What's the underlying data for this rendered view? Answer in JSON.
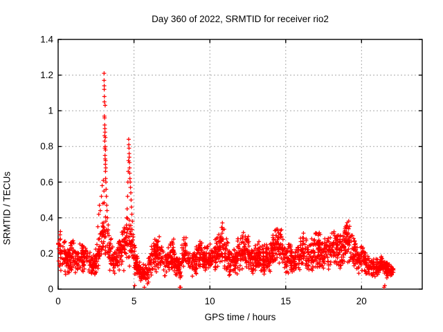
{
  "window": {
    "background": "#ffffff"
  },
  "chart_data": {
    "type": "scatter",
    "title": "Day 360 of 2022, SRMTID for receiver rio2",
    "xlabel": "GPS time / hours",
    "ylabel": "SRMTID / TECUs",
    "xlim": [
      0,
      24
    ],
    "ylim": [
      0,
      1.4
    ],
    "xticks": [
      0,
      5,
      10,
      15,
      20
    ],
    "xtick_labels": [
      "0",
      "5",
      "10",
      "15",
      "20"
    ],
    "yticks": [
      0,
      0.2,
      0.4,
      0.6,
      0.8,
      1.0,
      1.2,
      1.4
    ],
    "ytick_labels": [
      "0",
      "0.2",
      "0.4",
      "0.6",
      "0.8",
      "1",
      "1.2",
      "1.4"
    ],
    "grid": true,
    "legend": "none",
    "marker": "plus",
    "marker_color": "#ff0000",
    "grid_color": "#a8a8a8",
    "axis_color": "#000000",
    "data_time_range_hours": [
      0,
      22.1
    ],
    "max_value": 1.21,
    "max_value_time": 3.03,
    "band_envelope": {
      "description": "Dense noisy band of SRMTID values; keypoints are [t_hours, band_low, band_high] estimated from the plot; values interpolated linearly between keypoints.",
      "keypoints": [
        [
          0.0,
          0.1,
          0.4
        ],
        [
          0.2,
          0.09,
          0.35
        ],
        [
          0.45,
          0.08,
          0.29
        ],
        [
          0.7,
          0.08,
          0.25
        ],
        [
          0.95,
          0.09,
          0.32
        ],
        [
          1.1,
          0.09,
          0.3
        ],
        [
          1.3,
          0.07,
          0.23
        ],
        [
          1.55,
          0.09,
          0.28
        ],
        [
          1.8,
          0.08,
          0.24
        ],
        [
          2.0,
          0.07,
          0.25
        ],
        [
          2.25,
          0.06,
          0.2
        ],
        [
          2.5,
          0.07,
          0.24
        ],
        [
          2.75,
          0.11,
          0.36
        ],
        [
          3.0,
          0.15,
          0.5
        ],
        [
          3.15,
          0.13,
          0.48
        ],
        [
          3.35,
          0.09,
          0.33
        ],
        [
          3.6,
          0.08,
          0.26
        ],
        [
          3.85,
          0.08,
          0.25
        ],
        [
          4.1,
          0.09,
          0.32
        ],
        [
          4.35,
          0.1,
          0.4
        ],
        [
          4.6,
          0.12,
          0.46
        ],
        [
          4.85,
          0.1,
          0.38
        ],
        [
          5.1,
          0.06,
          0.24
        ],
        [
          5.35,
          0.04,
          0.17
        ],
        [
          5.6,
          0.03,
          0.14
        ],
        [
          5.85,
          0.04,
          0.16
        ],
        [
          6.1,
          0.06,
          0.23
        ],
        [
          6.35,
          0.08,
          0.3
        ],
        [
          6.6,
          0.09,
          0.33
        ],
        [
          6.85,
          0.08,
          0.27
        ],
        [
          7.1,
          0.06,
          0.23
        ],
        [
          7.35,
          0.07,
          0.26
        ],
        [
          7.6,
          0.09,
          0.31
        ],
        [
          7.85,
          0.06,
          0.21
        ],
        [
          8.05,
          0.04,
          0.2
        ],
        [
          8.25,
          0.08,
          0.34
        ],
        [
          8.5,
          0.09,
          0.29
        ],
        [
          8.75,
          0.06,
          0.22
        ],
        [
          9.0,
          0.07,
          0.25
        ],
        [
          9.3,
          0.09,
          0.31
        ],
        [
          9.6,
          0.08,
          0.26
        ],
        [
          9.9,
          0.08,
          0.27
        ],
        [
          10.2,
          0.08,
          0.27
        ],
        [
          10.5,
          0.09,
          0.31
        ],
        [
          10.85,
          0.11,
          0.4
        ],
        [
          11.1,
          0.09,
          0.31
        ],
        [
          11.4,
          0.06,
          0.22
        ],
        [
          11.7,
          0.07,
          0.27
        ],
        [
          12.0,
          0.09,
          0.32
        ],
        [
          12.3,
          0.11,
          0.36
        ],
        [
          12.6,
          0.1,
          0.3
        ],
        [
          12.9,
          0.08,
          0.26
        ],
        [
          13.2,
          0.09,
          0.3
        ],
        [
          13.5,
          0.07,
          0.25
        ],
        [
          13.8,
          0.08,
          0.27
        ],
        [
          14.1,
          0.09,
          0.31
        ],
        [
          14.45,
          0.12,
          0.41
        ],
        [
          14.7,
          0.11,
          0.36
        ],
        [
          15.0,
          0.08,
          0.27
        ],
        [
          15.3,
          0.08,
          0.27
        ],
        [
          15.6,
          0.08,
          0.25
        ],
        [
          15.9,
          0.09,
          0.28
        ],
        [
          16.2,
          0.1,
          0.33
        ],
        [
          16.5,
          0.08,
          0.28
        ],
        [
          16.8,
          0.09,
          0.31
        ],
        [
          17.1,
          0.1,
          0.36
        ],
        [
          17.4,
          0.09,
          0.3
        ],
        [
          17.7,
          0.1,
          0.34
        ],
        [
          18.0,
          0.1,
          0.35
        ],
        [
          18.25,
          0.11,
          0.37
        ],
        [
          18.55,
          0.09,
          0.32
        ],
        [
          18.8,
          0.1,
          0.35
        ],
        [
          19.05,
          0.13,
          0.43
        ],
        [
          19.3,
          0.11,
          0.38
        ],
        [
          19.55,
          0.09,
          0.3
        ],
        [
          19.8,
          0.08,
          0.25
        ],
        [
          20.1,
          0.08,
          0.25
        ],
        [
          20.4,
          0.07,
          0.2
        ],
        [
          20.7,
          0.06,
          0.18
        ],
        [
          21.0,
          0.06,
          0.19
        ],
        [
          21.3,
          0.07,
          0.21
        ],
        [
          21.6,
          0.05,
          0.16
        ],
        [
          21.9,
          0.06,
          0.15
        ],
        [
          22.12,
          0.07,
          0.13
        ]
      ]
    },
    "spike_points": [
      [
        2.62,
        0.35
      ],
      [
        2.68,
        0.42
      ],
      [
        2.72,
        0.47
      ],
      [
        2.78,
        0.44
      ],
      [
        2.85,
        0.52
      ],
      [
        2.9,
        0.58
      ],
      [
        2.95,
        0.48
      ],
      [
        2.98,
        0.61
      ],
      [
        3.02,
        0.55
      ],
      [
        3.03,
        1.21
      ],
      [
        3.03,
        1.17
      ],
      [
        3.04,
        1.14
      ],
      [
        3.04,
        1.12
      ],
      [
        3.05,
        1.08
      ],
      [
        3.05,
        1.05
      ],
      [
        3.05,
        0.97
      ],
      [
        3.06,
        0.96
      ],
      [
        3.06,
        0.86
      ],
      [
        3.07,
        0.92
      ],
      [
        3.07,
        0.83
      ],
      [
        3.08,
        0.9
      ],
      [
        3.08,
        0.79
      ],
      [
        3.09,
        0.88
      ],
      [
        3.09,
        0.75
      ],
      [
        3.1,
        1.03
      ],
      [
        3.1,
        0.8
      ],
      [
        3.1,
        0.73
      ],
      [
        3.11,
        0.85
      ],
      [
        3.11,
        0.7
      ],
      [
        3.12,
        0.78
      ],
      [
        3.12,
        0.66
      ],
      [
        3.13,
        0.72
      ],
      [
        3.13,
        0.62
      ],
      [
        3.14,
        0.68
      ],
      [
        3.15,
        0.6
      ],
      [
        3.16,
        0.56
      ],
      [
        3.18,
        0.52
      ],
      [
        3.2,
        0.47
      ],
      [
        3.22,
        0.44
      ],
      [
        3.25,
        0.4
      ],
      [
        3.3,
        0.36
      ],
      [
        4.52,
        0.4
      ],
      [
        4.55,
        0.45
      ],
      [
        4.58,
        0.52
      ],
      [
        4.6,
        0.6
      ],
      [
        4.62,
        0.66
      ],
      [
        4.64,
        0.72
      ],
      [
        4.65,
        0.84
      ],
      [
        4.66,
        0.81
      ],
      [
        4.67,
        0.79
      ],
      [
        4.68,
        0.76
      ],
      [
        4.69,
        0.74
      ],
      [
        4.7,
        0.71
      ],
      [
        4.71,
        0.68
      ],
      [
        4.72,
        0.65
      ],
      [
        4.73,
        0.62
      ],
      [
        4.75,
        0.6
      ],
      [
        4.77,
        0.57
      ],
      [
        4.79,
        0.54
      ],
      [
        4.81,
        0.5
      ],
      [
        4.83,
        0.46
      ],
      [
        4.86,
        0.42
      ],
      [
        4.9,
        0.38
      ]
    ],
    "near_zero_points": [
      [
        5.05,
        0.02
      ],
      [
        5.68,
        0.01
      ],
      [
        5.9,
        0.03
      ],
      [
        5.95,
        0.04
      ],
      [
        8.02,
        0.01
      ],
      [
        8.07,
        0.01
      ],
      [
        21.48,
        0.01
      ],
      [
        21.53,
        0.02
      ]
    ],
    "generator": {
      "seed": 3602022,
      "count": 2300,
      "t_max": 22.12
    }
  }
}
